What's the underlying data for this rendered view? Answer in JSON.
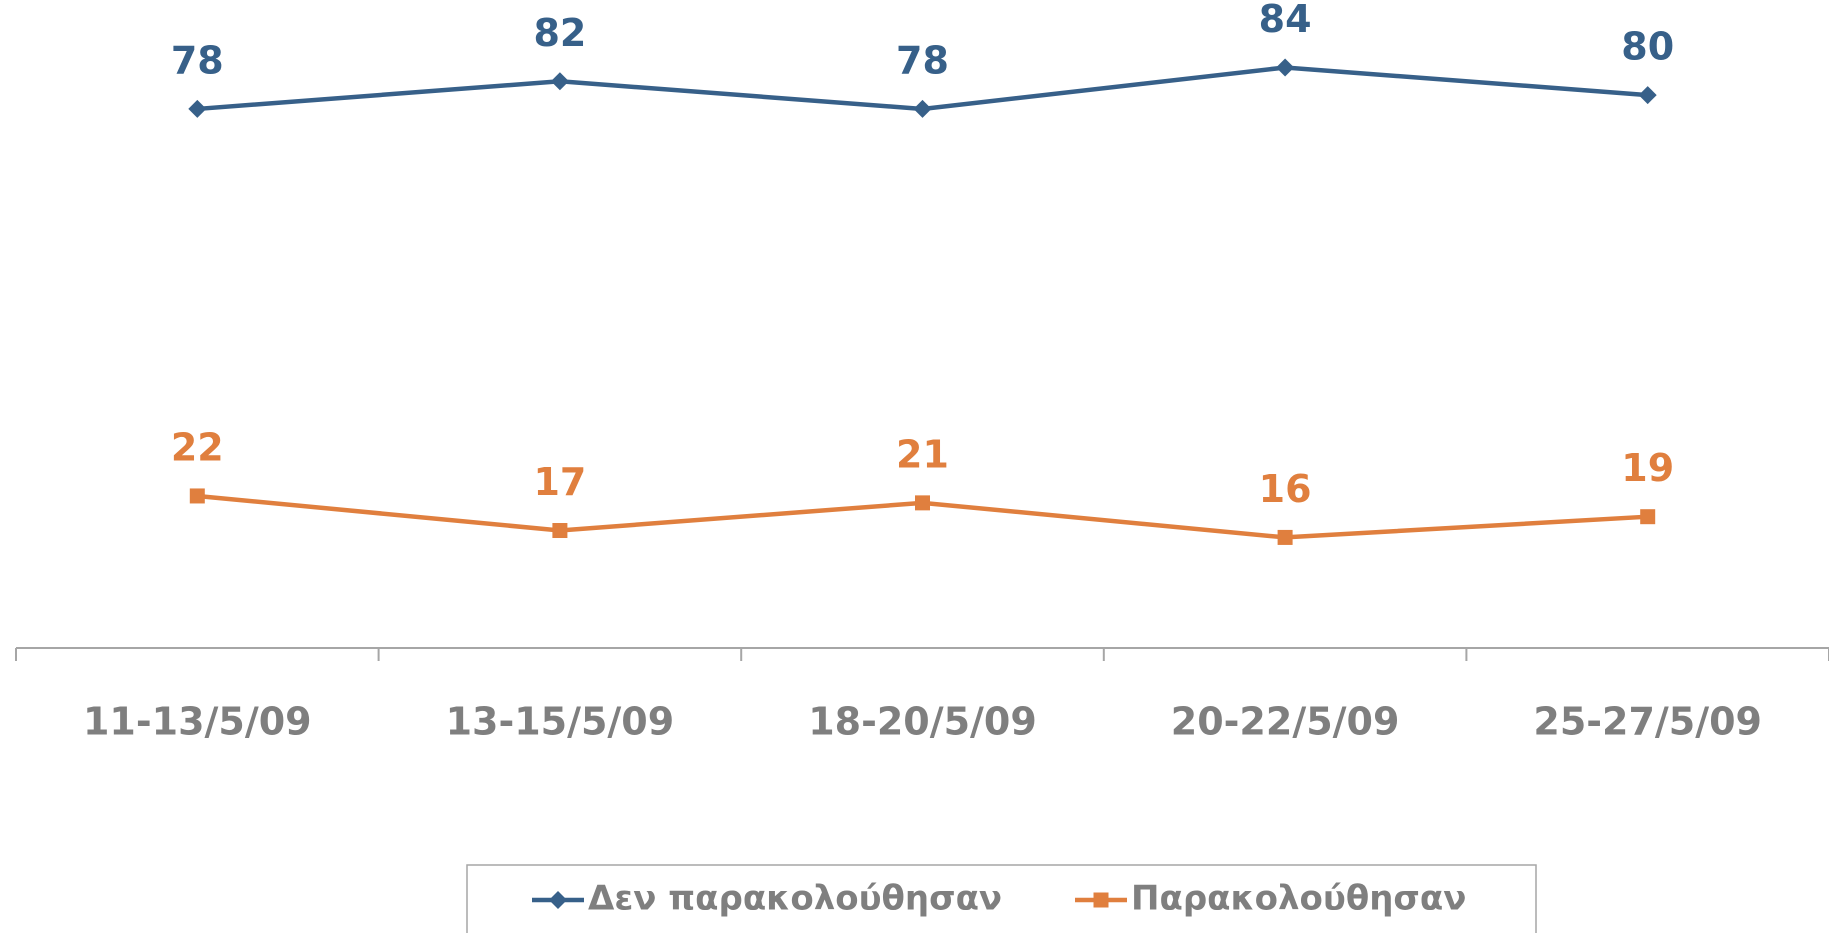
{
  "chart_data": {
    "type": "line",
    "categories": [
      "11-13/5/09",
      "13-15/5/09",
      "18-20/5/09",
      "20-22/5/09",
      "25-27/5/09"
    ],
    "series": [
      {
        "name": "Δεν παρακολούθησαν",
        "color": "#376089",
        "marker": "diamond",
        "values": [
          78,
          82,
          78,
          84,
          80
        ]
      },
      {
        "name": "Παρακολούθησαν",
        "color": "#e07f3e",
        "marker": "square",
        "values": [
          22,
          17,
          21,
          16,
          19
        ]
      }
    ],
    "ylim": [
      0,
      90
    ],
    "legend": "bottom"
  }
}
